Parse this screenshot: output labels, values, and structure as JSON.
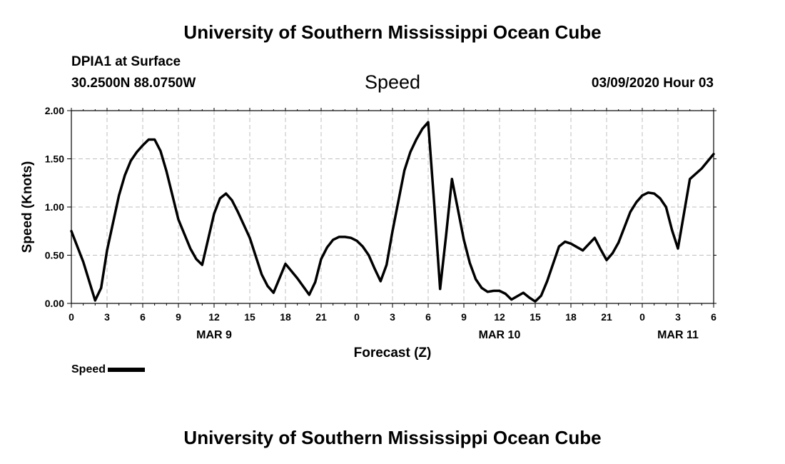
{
  "header": {
    "top_title": "University of Southern Mississippi Ocean Cube",
    "bottom_title": "University of Southern Mississippi Ocean Cube",
    "station": "DPIA1 at Surface",
    "coordinates": "30.2500N 88.0750W",
    "timestamp": "03/09/2020 Hour 03"
  },
  "chart_data": {
    "type": "line",
    "title": "Speed",
    "xlabel": "Forecast (Z)",
    "ylabel": "Speed (Knots)",
    "ylim": [
      0,
      2
    ],
    "xlim": [
      0,
      54
    ],
    "x_unit": "hour",
    "y_ticks": [
      "0.00",
      "0.50",
      "1.00",
      "1.50",
      "2.00"
    ],
    "x_ticks": [
      {
        "x": 0,
        "label": "0"
      },
      {
        "x": 3,
        "label": "3"
      },
      {
        "x": 6,
        "label": "6"
      },
      {
        "x": 9,
        "label": "9"
      },
      {
        "x": 12,
        "label": "12"
      },
      {
        "x": 15,
        "label": "15"
      },
      {
        "x": 18,
        "label": "18"
      },
      {
        "x": 21,
        "label": "21"
      },
      {
        "x": 24,
        "label": "0"
      },
      {
        "x": 27,
        "label": "3"
      },
      {
        "x": 30,
        "label": "6"
      },
      {
        "x": 33,
        "label": "9"
      },
      {
        "x": 36,
        "label": "12"
      },
      {
        "x": 39,
        "label": "15"
      },
      {
        "x": 42,
        "label": "18"
      },
      {
        "x": 45,
        "label": "21"
      },
      {
        "x": 48,
        "label": "0"
      },
      {
        "x": 51,
        "label": "3"
      },
      {
        "x": 54,
        "label": "6"
      }
    ],
    "date_labels": [
      {
        "x": 12,
        "label": "MAR 9"
      },
      {
        "x": 36,
        "label": "MAR 10"
      },
      {
        "x": 51,
        "label": "MAR 11"
      }
    ],
    "grid": true,
    "legend_position": "bottom-left",
    "series": [
      {
        "name": "Speed",
        "color": "#000000",
        "x": [
          0,
          1,
          2,
          2.5,
          3,
          4,
          4.5,
          5,
          5.5,
          6,
          6.5,
          7,
          7.5,
          8,
          9,
          10,
          10.5,
          11,
          12,
          12.5,
          13,
          13.5,
          14,
          15,
          16,
          16.5,
          17,
          18,
          19,
          20,
          20.5,
          21,
          21.5,
          22,
          22.5,
          23,
          23.5,
          24,
          24.5,
          25,
          25.5,
          26,
          26.5,
          27,
          28,
          28.5,
          29,
          29.5,
          30,
          30.5,
          31,
          31.5,
          32,
          33,
          33.5,
          34,
          34.5,
          35,
          35.5,
          36,
          36.5,
          37,
          38,
          38.5,
          39,
          39.5,
          40,
          41,
          41.5,
          42,
          43,
          44,
          44.5,
          45,
          45.5,
          46,
          47,
          47.5,
          48,
          48.5,
          49,
          49.5,
          50,
          50.5,
          51,
          52,
          53,
          54
        ],
        "values": [
          0.75,
          0.43,
          0.03,
          0.16,
          0.55,
          1.12,
          1.33,
          1.48,
          1.57,
          1.64,
          1.7,
          1.7,
          1.58,
          1.37,
          0.87,
          0.57,
          0.46,
          0.4,
          0.93,
          1.09,
          1.14,
          1.07,
          0.95,
          0.68,
          0.3,
          0.18,
          0.11,
          0.41,
          0.26,
          0.09,
          0.22,
          0.46,
          0.58,
          0.66,
          0.69,
          0.69,
          0.68,
          0.65,
          0.59,
          0.5,
          0.36,
          0.23,
          0.4,
          0.75,
          1.38,
          1.57,
          1.7,
          1.81,
          1.88,
          1.05,
          0.15,
          0.7,
          1.29,
          0.66,
          0.42,
          0.25,
          0.16,
          0.12,
          0.13,
          0.13,
          0.1,
          0.04,
          0.11,
          0.06,
          0.02,
          0.08,
          0.23,
          0.59,
          0.64,
          0.62,
          0.55,
          0.68,
          0.56,
          0.45,
          0.52,
          0.63,
          0.95,
          1.05,
          1.12,
          1.15,
          1.14,
          1.09,
          1.0,
          0.76,
          0.57,
          1.29,
          1.4,
          1.55
        ]
      }
    ]
  },
  "legend": {
    "label": "Speed"
  }
}
